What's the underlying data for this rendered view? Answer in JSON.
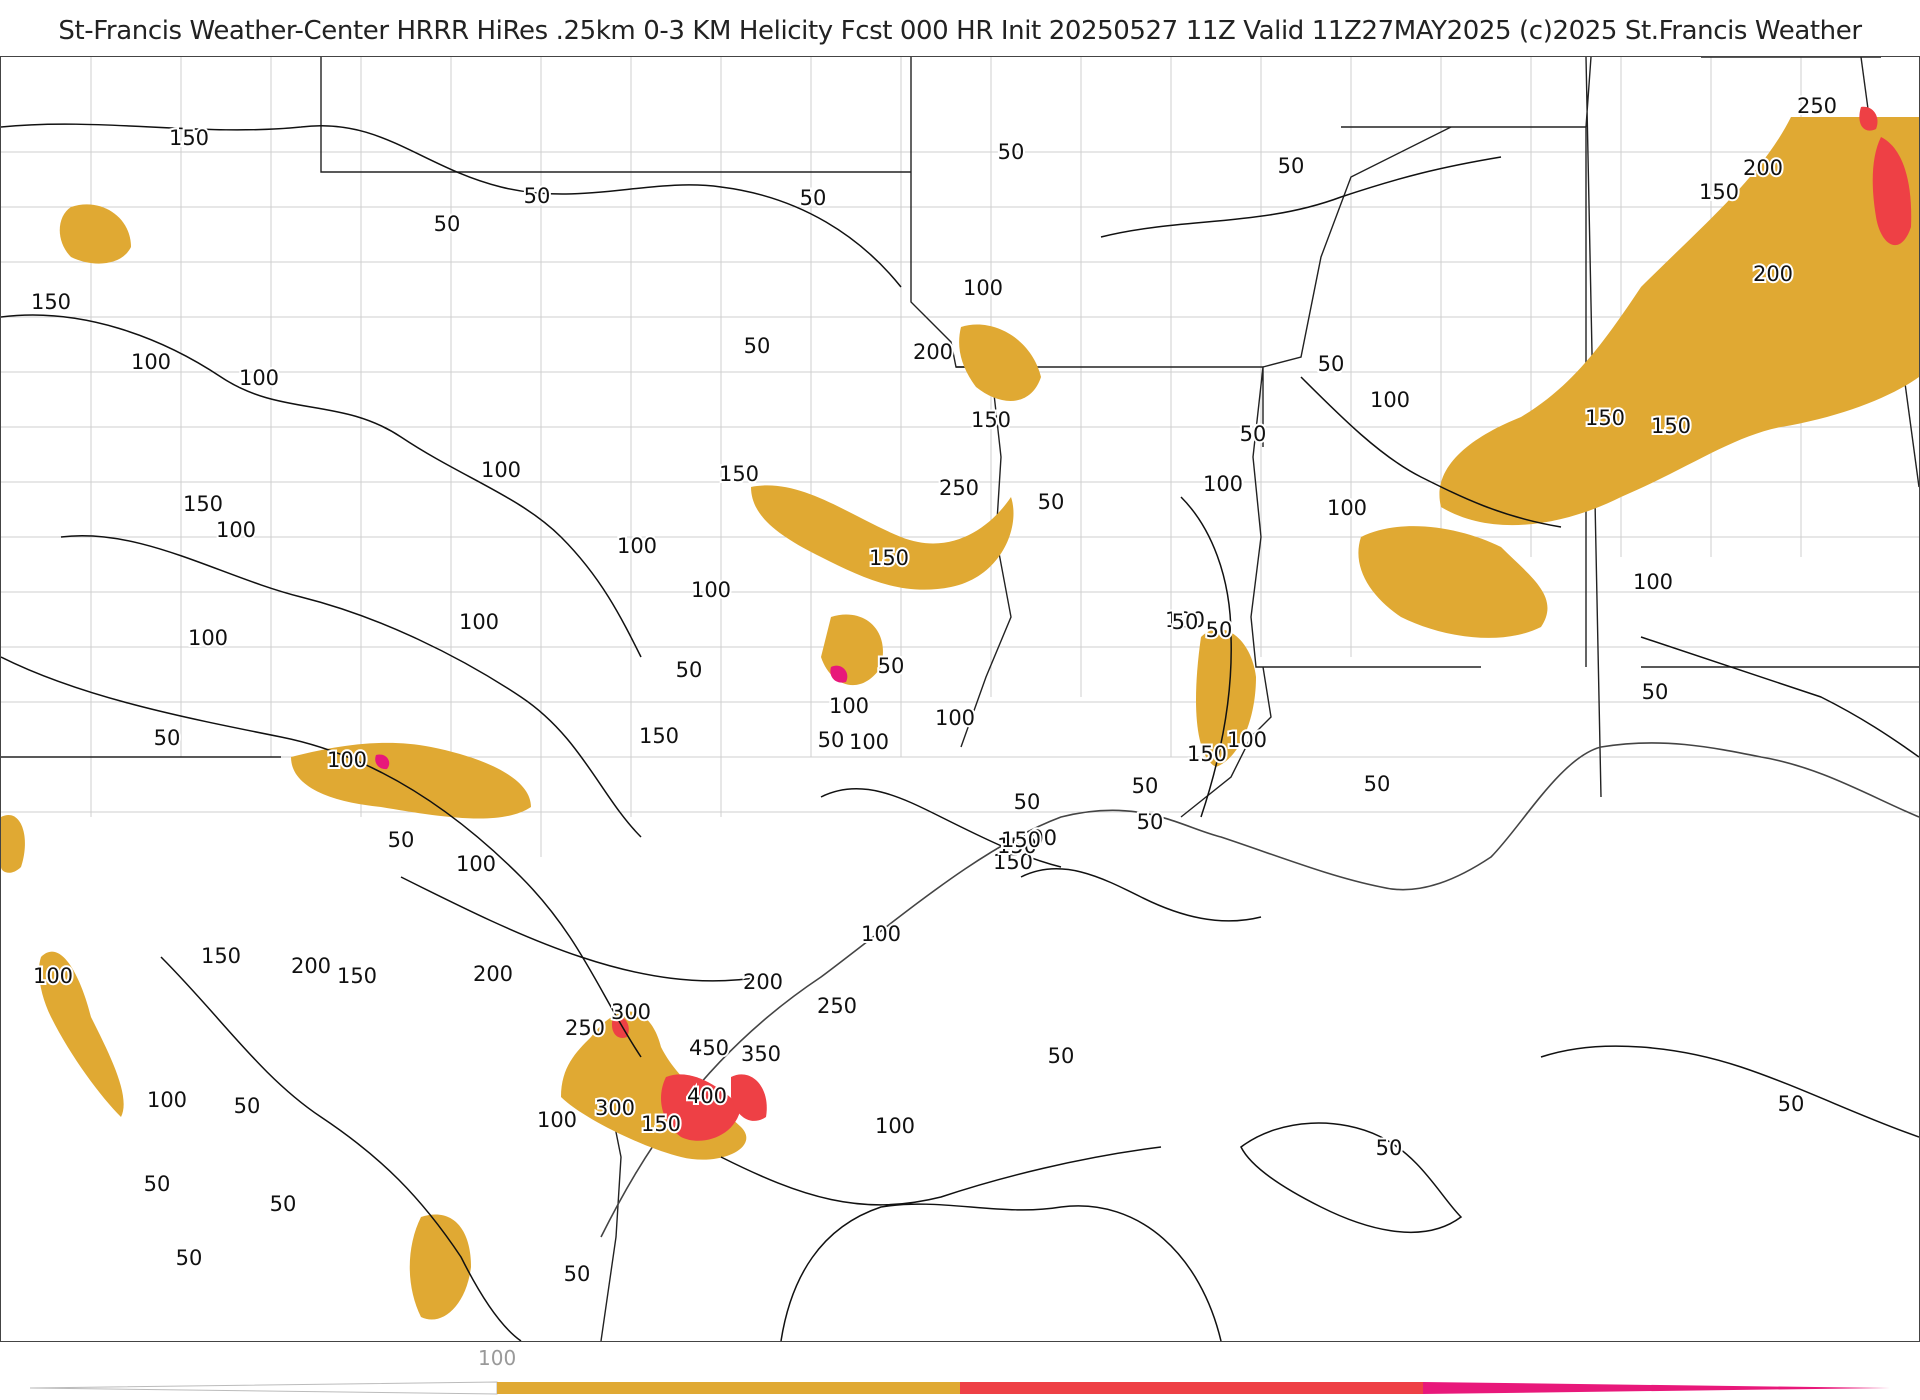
{
  "title": "St-Francis Weather-Center HRRR HiRes .25km 0-3 KM Helicity Fcst 000 HR Init 20250527 11Z  Valid 11Z27MAY2025    (c)2025 St.Francis Weather",
  "colors": {
    "band_100_200": "#e0a933",
    "band_200_300": "#ee4045",
    "band_300_plus": "#e8187a",
    "contour": "#111111",
    "county_lines": "#c8c8c8",
    "state_lines": "#222222"
  },
  "legend": {
    "tick_label": "100",
    "segments": [
      "white",
      "#e0a933",
      "#ee4045",
      "#e8187a"
    ]
  },
  "contour_labels": [
    "150",
    "50",
    "150",
    "100",
    "100",
    "100",
    "150",
    "100",
    "100",
    "50",
    "100",
    "50",
    "100",
    "50",
    "100",
    "100",
    "50",
    "50",
    "50",
    "100",
    "200",
    "150",
    "150",
    "250",
    "50",
    "100",
    "150",
    "100",
    "50",
    "50",
    "100",
    "100",
    "100",
    "50",
    "150",
    "100",
    "50",
    "100",
    "100",
    "50",
    "150",
    "100",
    "50",
    "50",
    "100",
    "150",
    "200",
    "150",
    "100",
    "150",
    "50",
    "150",
    "50",
    "100",
    "150",
    "300",
    "250",
    "200",
    "250",
    "200",
    "450",
    "350",
    "400",
    "300",
    "100",
    "150",
    "100",
    "50",
    "100",
    "50",
    "50",
    "50",
    "50",
    "50",
    "50",
    "100",
    "50",
    "50",
    "100",
    "50",
    "50",
    "150",
    "250",
    "200",
    "150",
    "200",
    "150",
    "100",
    "100",
    "50",
    "50",
    "150"
  ]
}
